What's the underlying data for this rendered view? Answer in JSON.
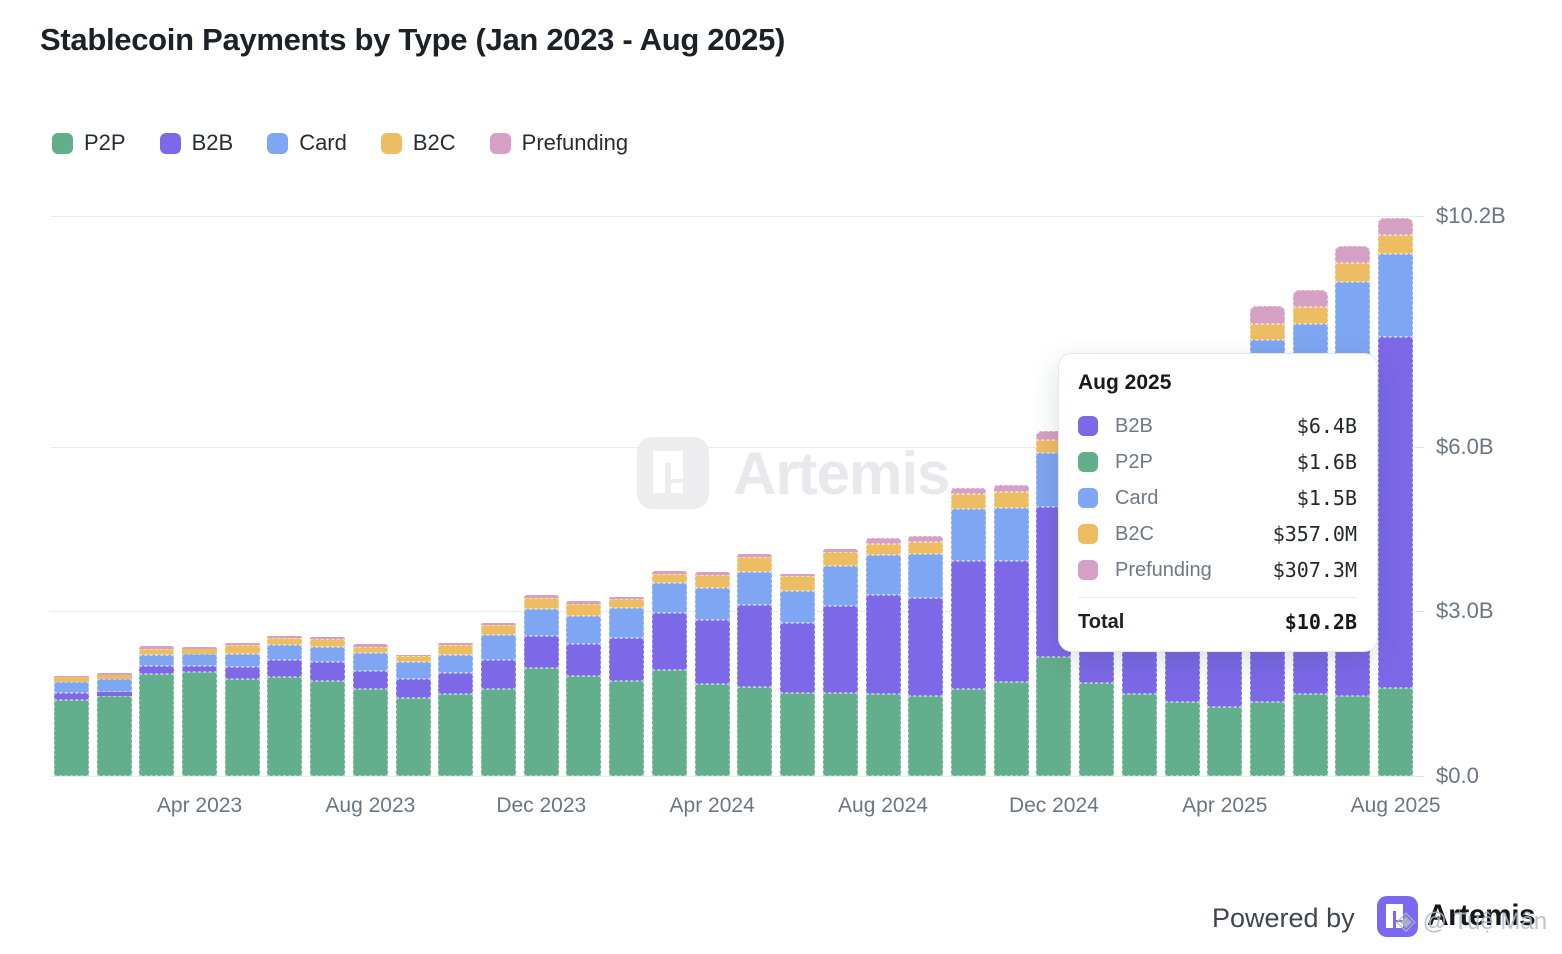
{
  "title": "Stablecoin Payments by Type (Jan 2023 - Aug 2025)",
  "colors": {
    "p2p": "#63AE8C",
    "b2b": "#7D68E8",
    "card": "#7FA6F2",
    "b2c": "#EDBD64",
    "prefunding": "#D5A0C4",
    "gridline": "#e9ebef",
    "axis_text": "#6b7584"
  },
  "legend": {
    "items": [
      {
        "label": "P2P",
        "color": "#63AE8C"
      },
      {
        "label": "B2B",
        "color": "#7D68E8"
      },
      {
        "label": "Card",
        "color": "#7FA6F2"
      },
      {
        "label": "B2C",
        "color": "#EDBD64"
      },
      {
        "label": "Prefunding",
        "color": "#D5A0C4"
      }
    ]
  },
  "y_axis": {
    "ticks": [
      {
        "label": "$10.2B",
        "value": 10.2
      },
      {
        "label": "$6.0B",
        "value": 6.0
      },
      {
        "label": "$3.0B",
        "value": 3.0
      },
      {
        "label": "$0.0",
        "value": 0.0
      }
    ]
  },
  "x_axis": {
    "ticks": [
      {
        "label": "Apr 2023",
        "month_index": 3
      },
      {
        "label": "Aug 2023",
        "month_index": 7
      },
      {
        "label": "Dec 2023",
        "month_index": 11
      },
      {
        "label": "Apr 2024",
        "month_index": 15
      },
      {
        "label": "Aug 2024",
        "month_index": 19
      },
      {
        "label": "Dec 2024",
        "month_index": 23
      },
      {
        "label": "Apr 2025",
        "month_index": 27
      },
      {
        "label": "Aug 2025",
        "month_index": 31
      }
    ]
  },
  "tooltip": {
    "title": "Aug 2025",
    "rows": [
      {
        "label": "B2B",
        "value": "$6.4B",
        "color": "#7D68E8"
      },
      {
        "label": "P2P",
        "value": "$1.6B",
        "color": "#63AE8C"
      },
      {
        "label": "Card",
        "value": "$1.5B",
        "color": "#7FA6F2"
      },
      {
        "label": "B2C",
        "value": "$357.0M",
        "color": "#EDBD64"
      },
      {
        "label": "Prefunding",
        "value": "$307.3M",
        "color": "#D5A0C4"
      }
    ],
    "total_label": "Total",
    "total_value": "$10.2B"
  },
  "watermark": {
    "text": "Artemis"
  },
  "footer": {
    "powered_by": "Powered by",
    "brand": "Artemis",
    "overlay_diamond": "◈",
    "overlay_text": "@ Tuệ Mân"
  },
  "chart_data": {
    "type": "bar",
    "stacked": true,
    "title": "Stablecoin Payments by Type (Jan 2023 - Aug 2025)",
    "unit": "USD billions",
    "ylim": [
      0,
      10.2
    ],
    "legend_position": "top-left",
    "grid": true,
    "x": [
      "Jan 2023",
      "Feb 2023",
      "Mar 2023",
      "Apr 2023",
      "May 2023",
      "Jun 2023",
      "Jul 2023",
      "Aug 2023",
      "Sep 2023",
      "Oct 2023",
      "Nov 2023",
      "Dec 2023",
      "Jan 2024",
      "Feb 2024",
      "Mar 2024",
      "Apr 2024",
      "May 2024",
      "Jun 2024",
      "Jul 2024",
      "Aug 2024",
      "Sep 2024",
      "Oct 2024",
      "Nov 2024",
      "Dec 2024",
      "Jan 2025",
      "Feb 2025",
      "Mar 2025",
      "Apr 2025",
      "May 2025",
      "Jun 2025",
      "Jul 2025",
      "Aug 2025"
    ],
    "series": [
      {
        "name": "P2P",
        "color": "#63AE8C",
        "values": [
          1.38,
          1.45,
          1.85,
          1.89,
          1.76,
          1.8,
          1.74,
          1.58,
          1.42,
          1.5,
          1.58,
          1.96,
          1.83,
          1.74,
          1.94,
          1.67,
          1.63,
          1.52,
          1.51,
          1.49,
          1.45,
          1.58,
          1.72,
          2.16,
          1.69,
          1.49,
          1.35,
          1.26,
          1.35,
          1.49,
          1.45,
          1.6
        ]
      },
      {
        "name": "B2B",
        "color": "#7D68E8",
        "values": [
          0.13,
          0.09,
          0.16,
          0.11,
          0.22,
          0.31,
          0.33,
          0.34,
          0.34,
          0.38,
          0.54,
          0.6,
          0.58,
          0.78,
          1.03,
          1.18,
          1.49,
          1.27,
          1.58,
          1.8,
          1.8,
          2.34,
          2.2,
          2.74,
          3.2,
          3.6,
          4.0,
          4.4,
          5.1,
          5.2,
          6.0,
          6.4
        ]
      },
      {
        "name": "Card",
        "color": "#7FA6F2",
        "values": [
          0.2,
          0.22,
          0.2,
          0.22,
          0.25,
          0.27,
          0.29,
          0.33,
          0.31,
          0.33,
          0.45,
          0.49,
          0.51,
          0.54,
          0.54,
          0.58,
          0.6,
          0.58,
          0.73,
          0.74,
          0.8,
          0.94,
          0.96,
          0.98,
          1.1,
          1.2,
          1.3,
          1.4,
          1.5,
          1.55,
          1.55,
          1.5
        ]
      },
      {
        "name": "B2C",
        "color": "#EDBD64",
        "values": [
          0.09,
          0.09,
          0.11,
          0.09,
          0.15,
          0.13,
          0.13,
          0.11,
          0.11,
          0.18,
          0.18,
          0.2,
          0.22,
          0.16,
          0.18,
          0.24,
          0.27,
          0.27,
          0.27,
          0.2,
          0.22,
          0.27,
          0.29,
          0.25,
          0.33,
          0.33,
          0.34,
          0.35,
          0.29,
          0.31,
          0.34,
          0.36
        ]
      },
      {
        "name": "Prefunding",
        "color": "#D5A0C4",
        "values": [
          0.02,
          0.02,
          0.04,
          0.04,
          0.04,
          0.05,
          0.05,
          0.04,
          0.02,
          0.04,
          0.04,
          0.04,
          0.04,
          0.04,
          0.05,
          0.04,
          0.05,
          0.04,
          0.05,
          0.11,
          0.11,
          0.11,
          0.13,
          0.16,
          0.2,
          0.25,
          0.28,
          0.3,
          0.33,
          0.31,
          0.31,
          0.31
        ]
      }
    ],
    "highlighted_month": "Aug 2025",
    "highlighted_totals": {
      "B2B": "$6.4B",
      "P2P": "$1.6B",
      "Card": "$1.5B",
      "B2C": "$357.0M",
      "Prefunding": "$307.3M",
      "Total": "$10.2B"
    }
  }
}
